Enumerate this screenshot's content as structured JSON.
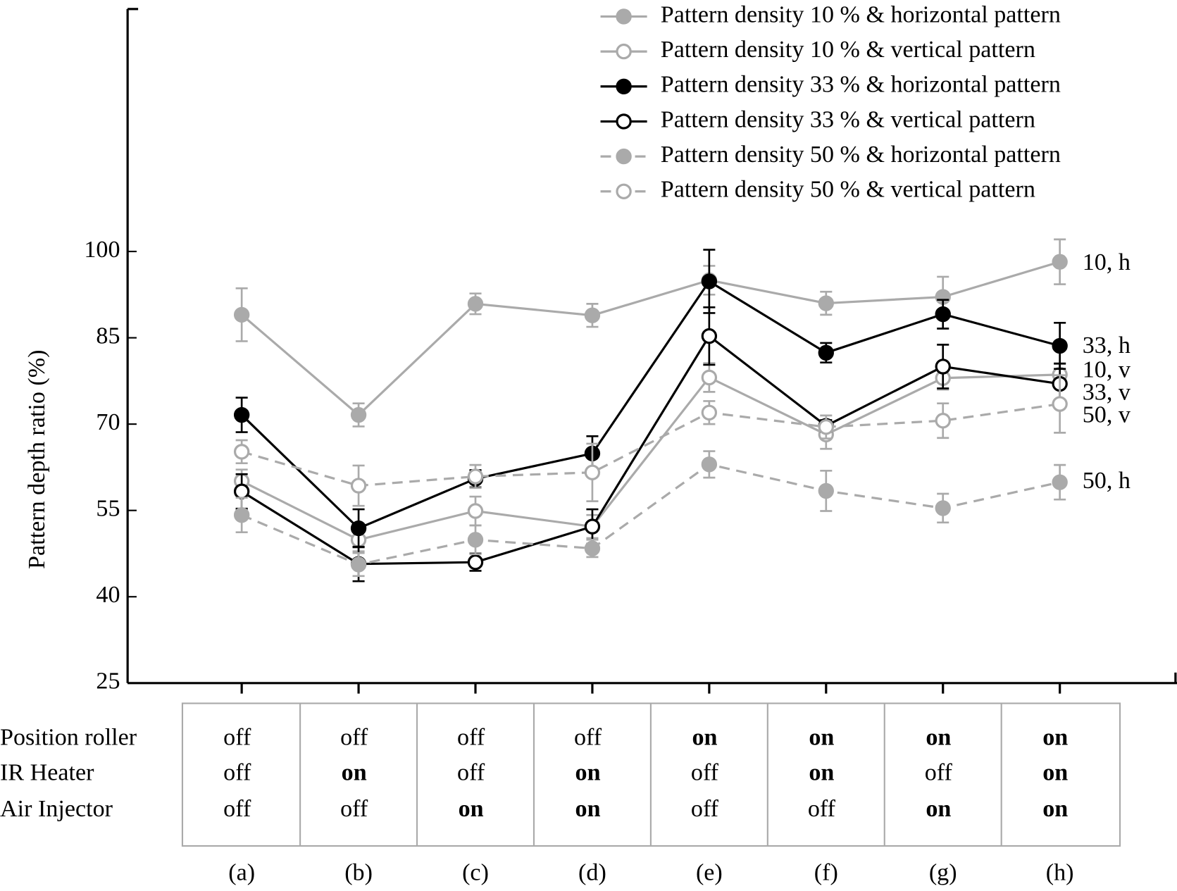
{
  "chart_data": {
    "type": "line",
    "y_label": "Pattern depth ratio (%)",
    "categories": [
      "(a)",
      "(b)",
      "(c)",
      "(d)",
      "(e)",
      "(f)",
      "(g)",
      "(h)"
    ],
    "ylim": [
      25,
      142
    ],
    "yticks": [
      25,
      40,
      55,
      70,
      85,
      100
    ],
    "legend": "top-right",
    "series": [
      {
        "name": "Pattern density 10 % & horizontal pattern",
        "end_label": "10, h",
        "color": "#aaaaaa",
        "dashed": false,
        "marker": "filled",
        "values": [
          89,
          71.6,
          90.9,
          88.9,
          95,
          91,
          92.1,
          98.2
        ],
        "errors": [
          4.6,
          2,
          1.8,
          2,
          2.5,
          2,
          3.5,
          3.9
        ]
      },
      {
        "name": "Pattern density 10 % & vertical pattern",
        "end_label": "10, v",
        "color": "#aaaaaa",
        "dashed": false,
        "marker": "open",
        "values": [
          60.1,
          49.9,
          54.9,
          52.2,
          78.1,
          68.2,
          78,
          78.6
        ],
        "errors": [
          2,
          2,
          2.5,
          2,
          2.5,
          2.5,
          2,
          2
        ]
      },
      {
        "name": "Pattern density 33 % & horizontal pattern",
        "end_label": "33, h",
        "color": "#000000",
        "dashed": false,
        "marker": "filled",
        "values": [
          71.6,
          51.9,
          60.5,
          64.9,
          94.8,
          82.4,
          89.1,
          83.6
        ],
        "errors": [
          3,
          3.3,
          1.5,
          3,
          5.5,
          1.7,
          2.5,
          4
        ]
      },
      {
        "name": "Pattern density 33 % & vertical pattern",
        "end_label": "33, v",
        "color": "#000000",
        "dashed": false,
        "marker": "open",
        "values": [
          58.3,
          45.7,
          46,
          52.2,
          85.3,
          69.7,
          80,
          77
        ],
        "errors": [
          3,
          3,
          1.5,
          3,
          5,
          1,
          3.8,
          3.5
        ]
      },
      {
        "name": "Pattern density 50 % & horizontal pattern",
        "end_label": "50, h",
        "color": "#aaaaaa",
        "dashed": true,
        "marker": "filled",
        "values": [
          54.2,
          45.6,
          49.9,
          48.4,
          63,
          58.4,
          55.4,
          59.9
        ],
        "errors": [
          3,
          2,
          2.5,
          1.5,
          2.3,
          3.5,
          2.5,
          3
        ]
      },
      {
        "name": "Pattern density 50 % & vertical pattern",
        "end_label": "50, v",
        "color": "#aaaaaa",
        "dashed": true,
        "marker": "open",
        "values": [
          65.2,
          59.3,
          60.9,
          61.6,
          72,
          69.5,
          70.6,
          73.5
        ],
        "errors": [
          2,
          3.5,
          2,
          5,
          2,
          2,
          3,
          5
        ]
      }
    ],
    "table": {
      "row_labels": [
        "Position roller",
        "IR Heater",
        "Air Injector"
      ],
      "rows": [
        [
          {
            "text": "off",
            "bold": false
          },
          {
            "text": "off",
            "bold": false
          },
          {
            "text": "off",
            "bold": false
          },
          {
            "text": "off",
            "bold": false
          },
          {
            "text": "on",
            "bold": true
          },
          {
            "text": "on",
            "bold": true
          },
          {
            "text": "on",
            "bold": true
          },
          {
            "text": "on",
            "bold": true
          }
        ],
        [
          {
            "text": "off",
            "bold": false
          },
          {
            "text": "on",
            "bold": true
          },
          {
            "text": "off",
            "bold": false
          },
          {
            "text": "on",
            "bold": true
          },
          {
            "text": "off",
            "bold": false
          },
          {
            "text": "on",
            "bold": true
          },
          {
            "text": "off",
            "bold": false
          },
          {
            "text": "on",
            "bold": true
          }
        ],
        [
          {
            "text": "off",
            "bold": false
          },
          {
            "text": "off",
            "bold": false
          },
          {
            "text": "on",
            "bold": true
          },
          {
            "text": "on",
            "bold": true
          },
          {
            "text": "off",
            "bold": false
          },
          {
            "text": "off",
            "bold": false
          },
          {
            "text": "on",
            "bold": true
          },
          {
            "text": "on",
            "bold": true
          }
        ]
      ]
    }
  }
}
